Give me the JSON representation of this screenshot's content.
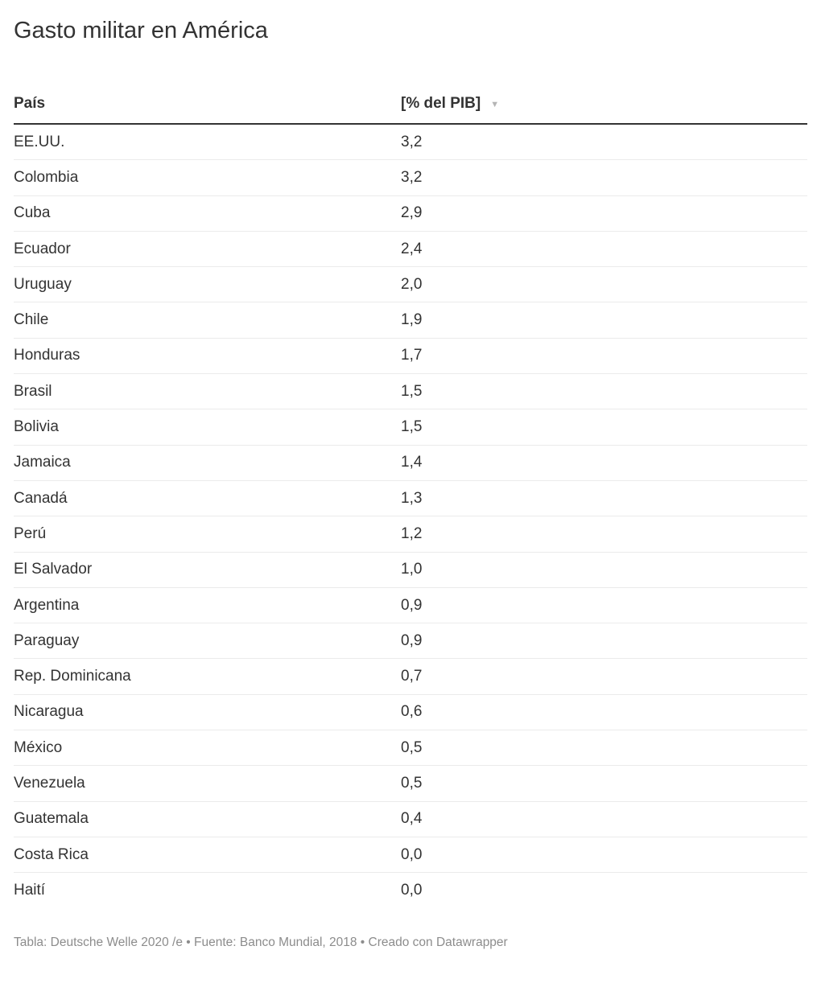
{
  "title": "Gasto militar en América",
  "header": {
    "col_country": "País",
    "col_value": "[% del PIB]",
    "sort_icon": "▼",
    "sort_state": "descending"
  },
  "rows": [
    {
      "country": "EE.UU.",
      "value": "3,2"
    },
    {
      "country": "Colombia",
      "value": "3,2"
    },
    {
      "country": "Cuba",
      "value": "2,9"
    },
    {
      "country": "Ecuador",
      "value": "2,4"
    },
    {
      "country": "Uruguay",
      "value": "2,0"
    },
    {
      "country": "Chile",
      "value": "1,9"
    },
    {
      "country": "Honduras",
      "value": "1,7"
    },
    {
      "country": "Brasil",
      "value": "1,5"
    },
    {
      "country": "Bolivia",
      "value": "1,5"
    },
    {
      "country": "Jamaica",
      "value": "1,4"
    },
    {
      "country": "Canadá",
      "value": "1,3"
    },
    {
      "country": "Perú",
      "value": "1,2"
    },
    {
      "country": "El Salvador",
      "value": "1,0"
    },
    {
      "country": "Argentina",
      "value": "0,9"
    },
    {
      "country": "Paraguay",
      "value": "0,9"
    },
    {
      "country": "Rep. Dominicana",
      "value": "0,7"
    },
    {
      "country": "Nicaragua",
      "value": "0,6"
    },
    {
      "country": "México",
      "value": "0,5"
    },
    {
      "country": "Venezuela",
      "value": "0,5"
    },
    {
      "country": "Guatemala",
      "value": "0,4"
    },
    {
      "country": "Costa Rica",
      "value": "0,0"
    },
    {
      "country": "Haití",
      "value": "0,0"
    }
  ],
  "footer": {
    "text": "Tabla: Deutsche Welle 2020 /e • Fuente: Banco Mundial, 2018 • Creado con Datawrapper"
  },
  "colors": {
    "text": "#333333",
    "row_divider": "#ebebeb",
    "header_rule": "#333333",
    "sort_icon": "#b5b5b5",
    "footer_text": "#8c8c8c",
    "background": "#ffffff"
  },
  "chart_data": {
    "type": "table",
    "title": "Gasto militar en América",
    "columns": [
      "País",
      "[% del PIB]"
    ],
    "rows": [
      [
        "EE.UU.",
        3.2
      ],
      [
        "Colombia",
        3.2
      ],
      [
        "Cuba",
        2.9
      ],
      [
        "Ecuador",
        2.4
      ],
      [
        "Uruguay",
        2.0
      ],
      [
        "Chile",
        1.9
      ],
      [
        "Honduras",
        1.7
      ],
      [
        "Brasil",
        1.5
      ],
      [
        "Bolivia",
        1.5
      ],
      [
        "Jamaica",
        1.4
      ],
      [
        "Canadá",
        1.3
      ],
      [
        "Perú",
        1.2
      ],
      [
        "El Salvador",
        1.0
      ],
      [
        "Argentina",
        0.9
      ],
      [
        "Paraguay",
        0.9
      ],
      [
        "Rep. Dominicana",
        0.7
      ],
      [
        "Nicaragua",
        0.6
      ],
      [
        "México",
        0.5
      ],
      [
        "Venezuela",
        0.5
      ],
      [
        "Guatemala",
        0.4
      ],
      [
        "Costa Rica",
        0.0
      ],
      [
        "Haití",
        0.0
      ]
    ],
    "sort": "[% del PIB] descending",
    "decimal_separator": ",",
    "footnote": "Tabla: Deutsche Welle 2020 /e • Fuente: Banco Mundial, 2018 • Creado con Datawrapper"
  }
}
